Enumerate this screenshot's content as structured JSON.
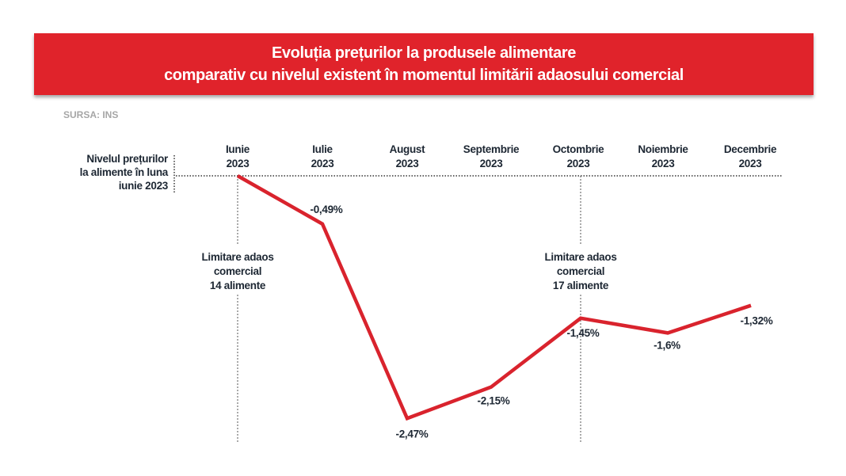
{
  "header": {
    "title_line1": "Evoluția prețurilor la produsele alimentare",
    "title_line2": "comparativ cu nivelul existent în momentul limitării adaosului comercial",
    "source": "SURSA: INS"
  },
  "colors": {
    "banner": "#e0232b",
    "line": "#d9232d",
    "text": "#1d2733",
    "source": "#a6a6a6"
  },
  "chart_data": {
    "type": "line",
    "title": "Evoluția prețurilor la produsele alimentare comparativ cu nivelul existent în momentul limitării adaosului comercial",
    "baseline_label": [
      "Nivelul prețurilor",
      "la alimente în luna",
      "iunie 2023"
    ],
    "categories": [
      [
        "Iunie",
        "2023"
      ],
      [
        "Iulie",
        "2023"
      ],
      [
        "August",
        "2023"
      ],
      [
        "Septembrie",
        "2023"
      ],
      [
        "Octombrie",
        "2023"
      ],
      [
        "Noiembrie",
        "2023"
      ],
      [
        "Decembrie",
        "2023"
      ]
    ],
    "values": [
      0,
      -0.49,
      -2.47,
      -2.15,
      -1.45,
      -1.6,
      -1.32
    ],
    "data_labels": [
      "",
      "-0,49%",
      "-2,47%",
      "-2,15%",
      "-1,45%",
      "-1,6%",
      "-1,32%"
    ],
    "annotations": [
      {
        "category_index": 0,
        "lines": [
          "Limitare adaos",
          "comercial",
          "14 alimente"
        ]
      },
      {
        "category_index": 4,
        "lines": [
          "Limitare adaos",
          "comercial",
          "17 alimente"
        ]
      }
    ],
    "ylim": [
      -2.6,
      0
    ],
    "grid": false
  }
}
